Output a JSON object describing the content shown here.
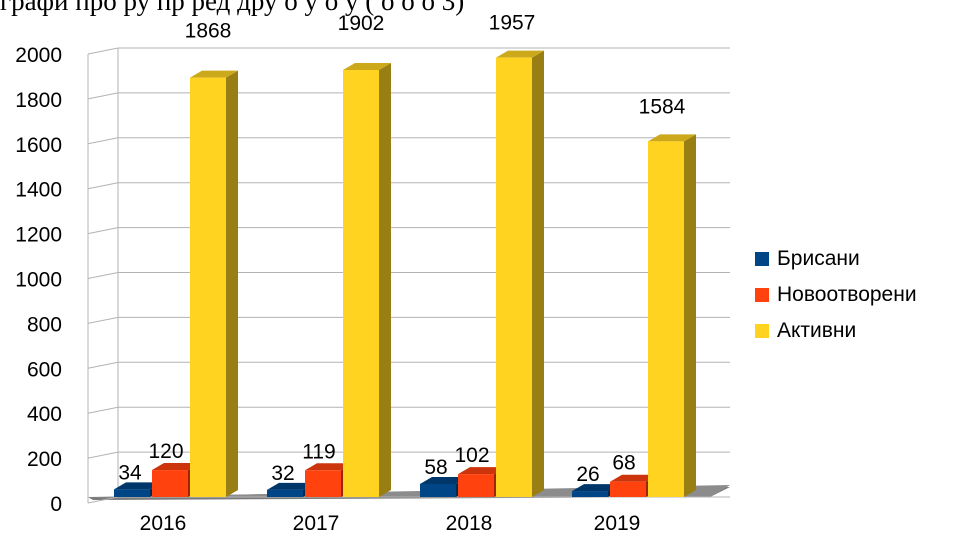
{
  "header_fragment": "графи  про   ру пр  ред   дру   о    у    о   у   ( о о   о   3)",
  "chart_data": {
    "type": "bar",
    "categories": [
      "2016",
      "2017",
      "2018",
      "2019"
    ],
    "series": [
      {
        "name": "Брисани",
        "values": [
          34,
          32,
          58,
          26
        ],
        "color": "#004586"
      },
      {
        "name": "Новоотворени",
        "values": [
          120,
          119,
          102,
          68
        ],
        "color": "#ff420e"
      },
      {
        "name": "Активни",
        "values": [
          1868,
          1902,
          1957,
          1584
        ],
        "color": "#ffd320"
      }
    ],
    "yticks": [
      "0",
      "200",
      "400",
      "600",
      "800",
      "1000",
      "1200",
      "1400",
      "1600",
      "1800",
      "2000"
    ],
    "ylim": [
      0,
      2000
    ],
    "grid": true,
    "legend_position": "right",
    "style": "3d"
  }
}
